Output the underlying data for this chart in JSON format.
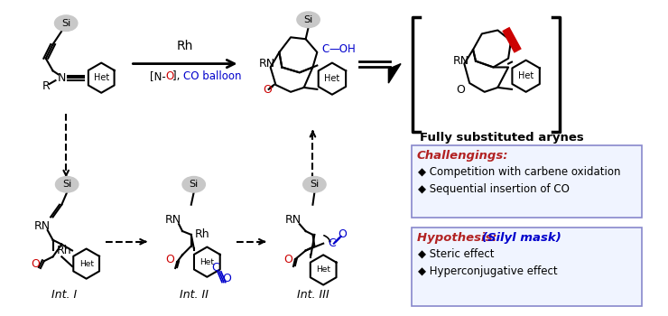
{
  "title": "",
  "bg_color": "#ffffff",
  "challengings_title": "Challengings:",
  "challengings_items": [
    "Competition with carbene oxidation",
    "Sequential insertion of CO"
  ],
  "hypothesis_title": "Hypothesis: ",
  "hypothesis_silyl": "(Silyl mask)",
  "hypothesis_items": [
    "Steric effect",
    "Hyperconjugative effect"
  ],
  "fully_sub_text": "Fully substituted arynes",
  "reaction_label_rh": "Rh",
  "reaction_label_no": "[N-O], ",
  "reaction_label_co": "CO balloon",
  "int1_label": "Int. I",
  "int2_label": "Int. II",
  "int3_label": "Int. III",
  "color_red": "#cc0000",
  "color_blue": "#0000cc",
  "color_crimson": "#b22222",
  "color_black": "#000000",
  "color_gray_bg": "#c8c8c8",
  "color_light_blue_border": "#8888cc",
  "color_box_bg": "#f0f4ff"
}
